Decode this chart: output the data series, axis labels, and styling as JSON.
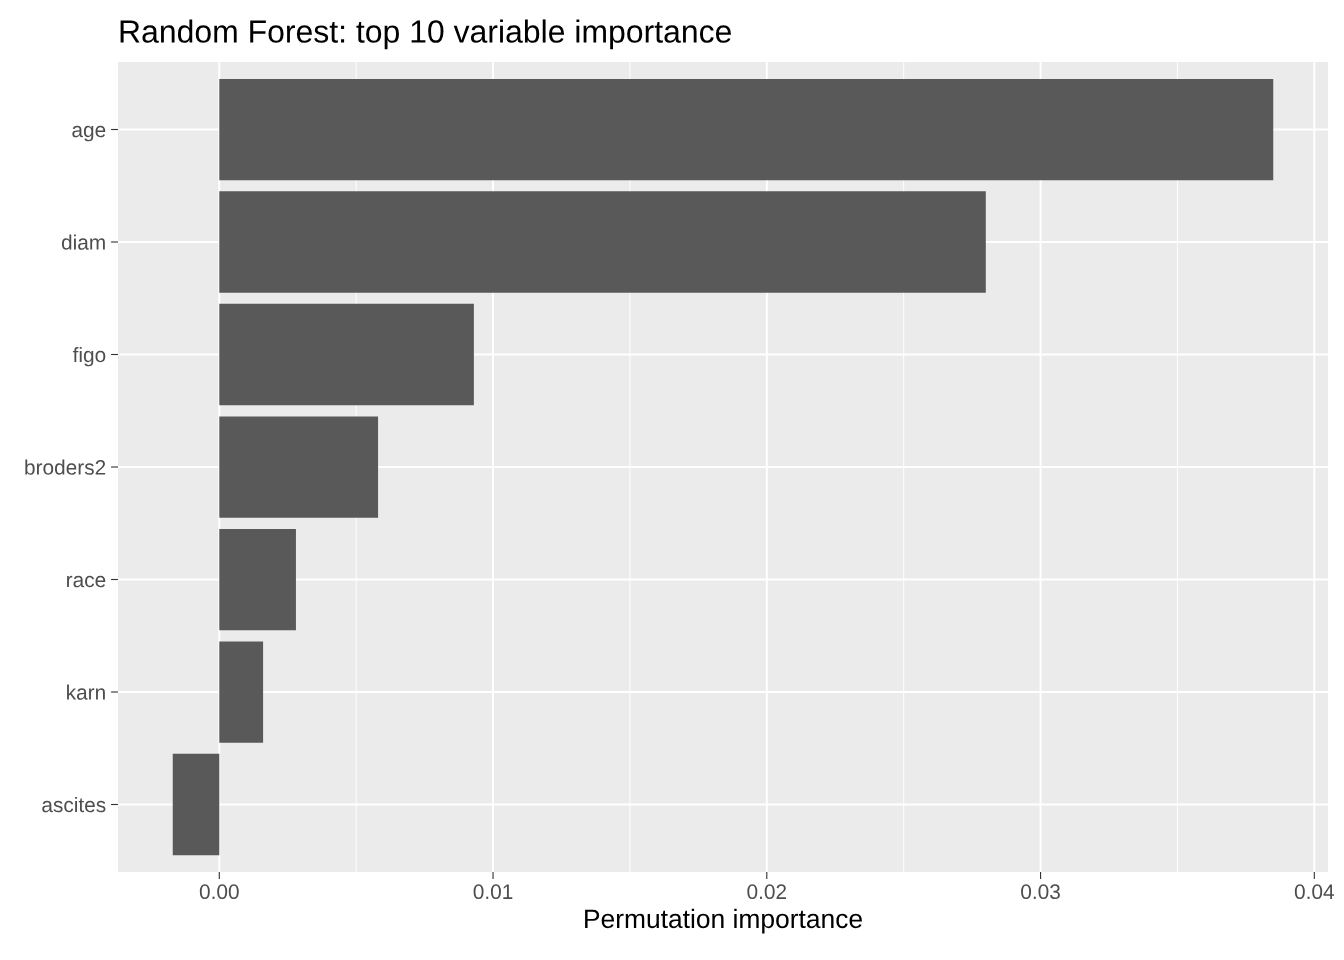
{
  "chart_data": {
    "type": "bar",
    "orientation": "horizontal",
    "title": "Random Forest: top 10 variable importance",
    "xlabel": "Permutation importance",
    "categories": [
      "age",
      "diam",
      "figo",
      "broders2",
      "race",
      "karn",
      "ascites"
    ],
    "values": [
      0.0385,
      0.028,
      0.0093,
      0.0058,
      0.0028,
      0.0016,
      -0.0017
    ],
    "color": "#595959",
    "xlim": [
      -0.0037,
      0.0405
    ],
    "xticks": [
      {
        "value": 0,
        "label": "0.00"
      },
      {
        "value": 0.01,
        "label": "0.01"
      },
      {
        "value": 0.02,
        "label": "0.02"
      },
      {
        "value": 0.03,
        "label": "0.03"
      },
      {
        "value": 0.04,
        "label": "0.04"
      }
    ],
    "grid": true,
    "legend": false
  }
}
